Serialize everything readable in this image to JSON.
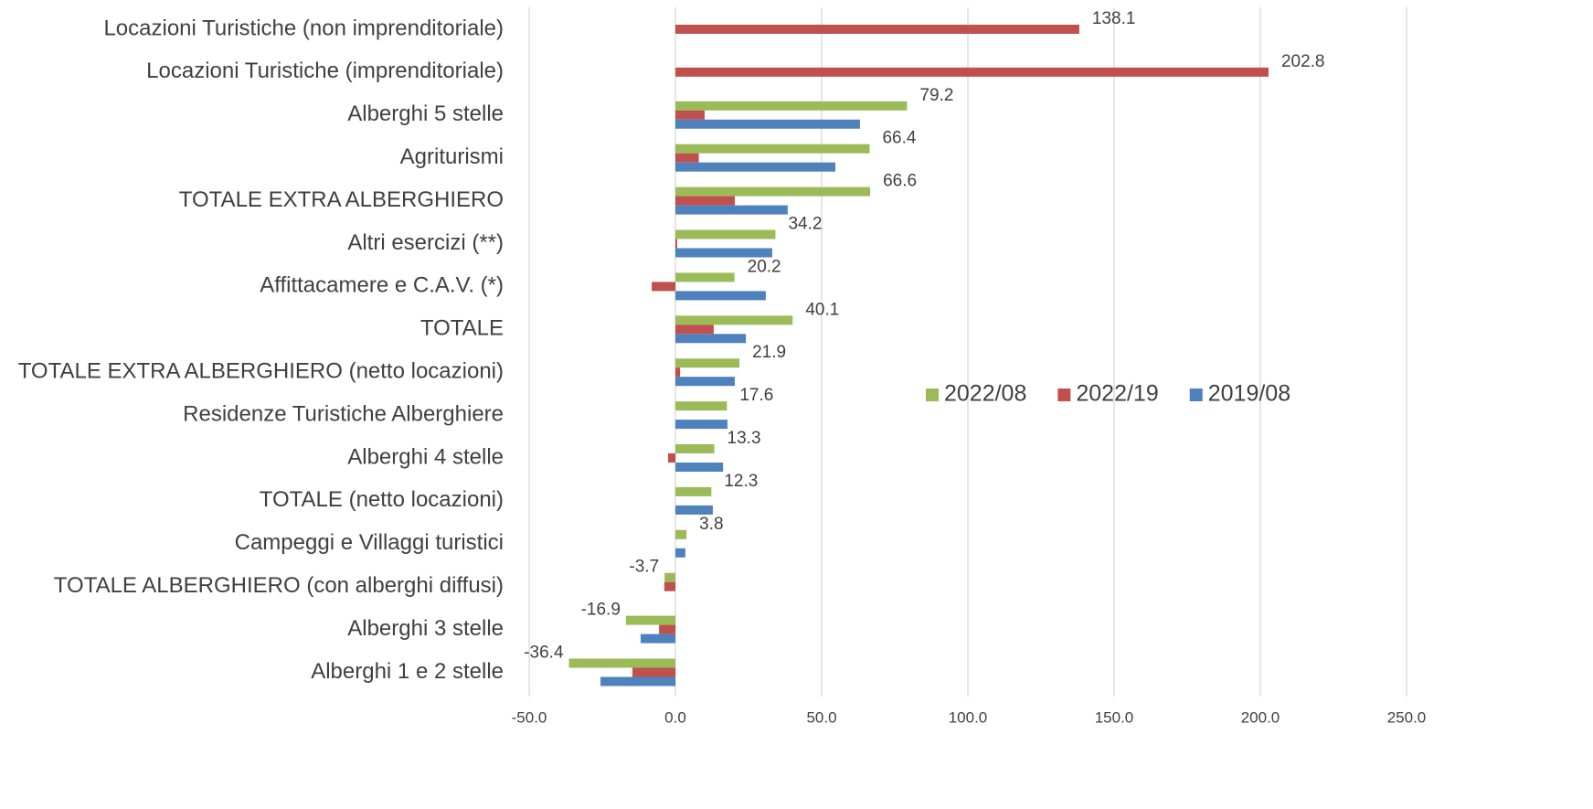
{
  "chart_data": {
    "type": "bar",
    "orientation": "horizontal",
    "categories": [
      "Locazioni Turistiche (non imprenditoriale)",
      "Locazioni Turistiche (imprenditoriale)",
      "Alberghi 5 stelle",
      "Agriturismi",
      "TOTALE EXTRA ALBERGHIERO",
      "Altri esercizi (**)",
      "Affittacamere e C.A.V. (*)",
      "TOTALE",
      "TOTALE EXTRA ALBERGHIERO (netto locazioni)",
      "Residenze Turistiche Alberghiere",
      "Alberghi 4 stelle",
      "TOTALE (netto locazioni)",
      "Campeggi e Villaggi turistici",
      "TOTALE ALBERGHIERO (con alberghi diffusi)",
      "Alberghi 3 stelle",
      "Alberghi 1 e 2 stelle"
    ],
    "series": [
      {
        "name": "2022/08",
        "color": "#9bbb59",
        "values": [
          null,
          null,
          79.2,
          66.4,
          66.6,
          34.2,
          20.2,
          40.1,
          21.9,
          17.6,
          13.3,
          12.3,
          3.8,
          -3.7,
          -16.9,
          -36.4
        ]
      },
      {
        "name": "2022/19",
        "color": "#c0504d",
        "values": [
          138.1,
          202.8,
          10.0,
          8.0,
          20.3,
          0.6,
          -8.1,
          13.1,
          1.6,
          0,
          -2.5,
          0,
          0,
          -3.8,
          -5.6,
          -14.7
        ]
      },
      {
        "name": "2019/08",
        "color": "#4f81bd",
        "values": [
          null,
          null,
          63.1,
          54.7,
          38.4,
          33.1,
          30.9,
          24.1,
          20.3,
          17.8,
          16.3,
          12.8,
          3.4,
          null,
          -11.9,
          -25.6
        ]
      }
    ],
    "xlim": [
      -50,
      250
    ],
    "xticks": [
      {
        "value": -50,
        "label": "-50.0"
      },
      {
        "value": 0,
        "label": "0.0"
      },
      {
        "value": 50,
        "label": "50.0"
      },
      {
        "value": 100,
        "label": "100.0"
      },
      {
        "value": 150,
        "label": "150.0"
      },
      {
        "value": 200,
        "label": "200.0"
      },
      {
        "value": 250,
        "label": "250.0"
      }
    ],
    "grid": true,
    "legend": "right"
  }
}
